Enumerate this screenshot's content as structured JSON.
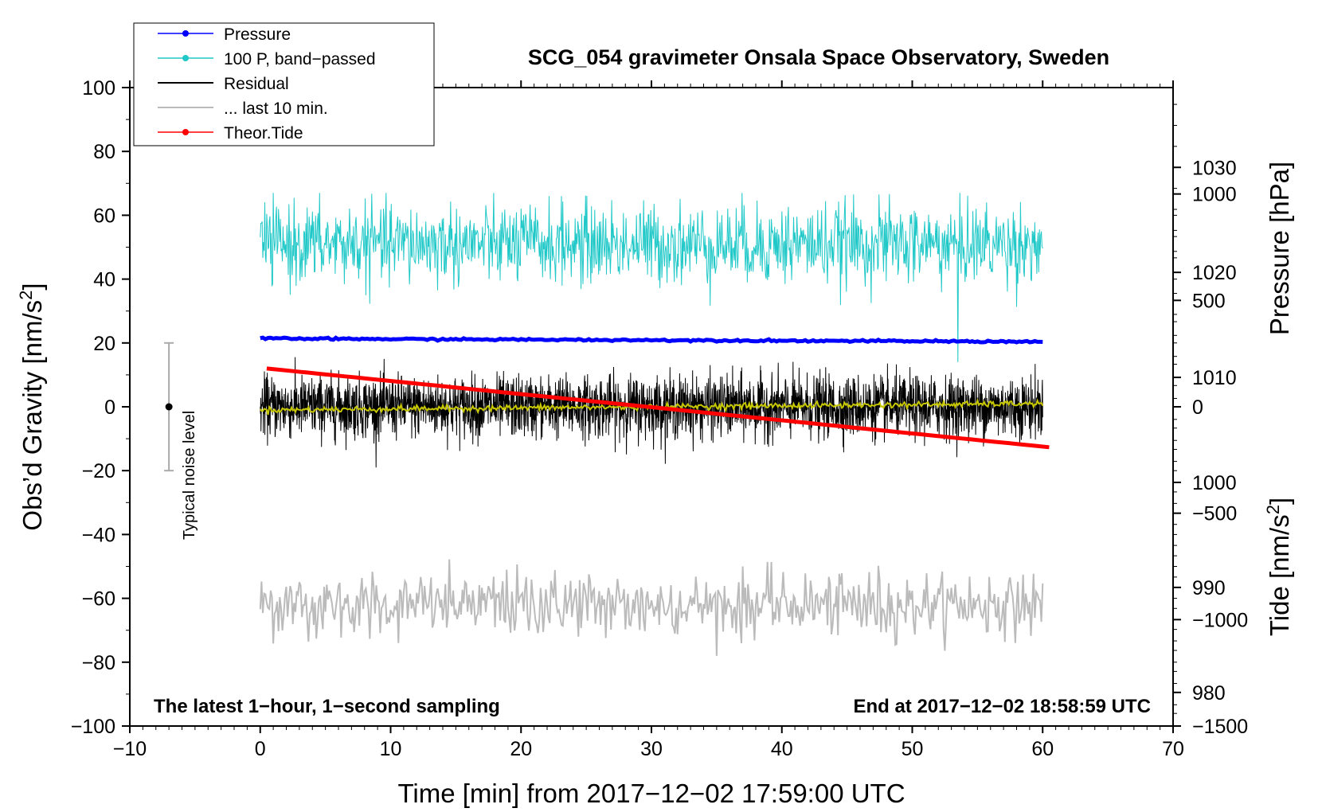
{
  "chart_data": {
    "type": "line",
    "title": "SCG_054 gravimeter Onsala Space Observatory, Sweden",
    "xlabel": "Time [min] from 2017−12−02 17:59:00 UTC",
    "ylabel_left": "Obs’d Gravity [nm/s",
    "ylabel_left_unit_sup": "2",
    "ylabel_left_close": "]",
    "ylabel_right_pressure": "Pressure [hPa]",
    "ylabel_right_tide": "Tide [nm/s",
    "ylabel_right_tide_sup": "2",
    "ylabel_right_tide_close": "]",
    "xlim": [
      -10,
      70
    ],
    "ylim_left": [
      -100,
      100
    ],
    "pressure_lim": [
      976.8,
      1037.6
    ],
    "tide_lim": [
      -1500,
      1500
    ],
    "x_ticks": [
      "−10",
      "0",
      "10",
      "20",
      "30",
      "40",
      "50",
      "60",
      "70"
    ],
    "x_tick_values": [
      -10,
      0,
      10,
      20,
      30,
      40,
      50,
      60,
      70
    ],
    "y_left_ticks": [
      "100",
      "80",
      "60",
      "40",
      "20",
      "0",
      "−20",
      "−40",
      "−60",
      "−80",
      "−100"
    ],
    "y_left_tick_values": [
      100,
      80,
      60,
      40,
      20,
      0,
      -20,
      -40,
      -60,
      -80,
      -100
    ],
    "pressure_ticks": [
      "1030",
      "1020",
      "1010",
      "1000",
      "990",
      "980"
    ],
    "pressure_tick_values": [
      1030,
      1020,
      1010,
      1000,
      990,
      980
    ],
    "tide_ticks": [
      "1000",
      "500",
      "0",
      "−500",
      "−1000",
      "−1500"
    ],
    "tide_tick_values": [
      1000,
      500,
      0,
      -500,
      -1000,
      -1500
    ],
    "legend": [
      {
        "label": "Pressure",
        "color": "#0000ff",
        "marker": true
      },
      {
        "label": "100 P, band−passed",
        "color": "#20c8c8",
        "marker": true
      },
      {
        "label": "Residual",
        "color": "#000000",
        "marker": false
      },
      {
        "label": "... last 10 min.",
        "color": "#bbbbbb",
        "marker": false
      },
      {
        "label": "Theor.Tide",
        "color": "#ff0000",
        "marker": true
      }
    ],
    "annotation_left": "The latest 1−hour, 1−second sampling",
    "annotation_right": "End at 2017−12−02 18:58:59 UTC",
    "noise_label": "Typical noise level",
    "noise_bar": {
      "x": -7,
      "center": 0,
      "half_range": 20
    },
    "series": [
      {
        "name": "Pressure",
        "color": "#0000ff",
        "axis": "pressure",
        "x_range": [
          0,
          60
        ],
        "start": 1013.7,
        "end": 1013.4,
        "noise": 0.15
      },
      {
        "name": "100 P, band−passed",
        "color": "#20c8c8",
        "axis": "left",
        "x_range": [
          0,
          60
        ],
        "mean": 51,
        "amplitude": 7,
        "min": 14,
        "max": 67
      },
      {
        "name": "Residual",
        "color": "#000000",
        "axis": "left",
        "x_range": [
          0,
          60
        ],
        "mean": 0,
        "amplitude": 5,
        "min": -19,
        "max": 18
      },
      {
        "name": "Residual smoothed",
        "color": "#c8c800",
        "axis": "left",
        "x_range": [
          0,
          60
        ],
        "start": -1,
        "end": 1
      },
      {
        "name": "... last 10 min.",
        "color": "#bbbbbb",
        "axis": "left",
        "x_range": [
          0,
          60
        ],
        "mean": -62,
        "amplitude": 5,
        "min": -78,
        "max": -45
      },
      {
        "name": "Theor.Tide",
        "color": "#ff0000",
        "axis": "tide",
        "x_range": [
          0.5,
          60.5
        ],
        "start": 180,
        "end": -190
      }
    ]
  },
  "colors": {
    "pressure": "#0000ff",
    "bandpassed": "#20c8c8",
    "residual": "#000000",
    "smoothed": "#c8c800",
    "last10": "#bbbbbb",
    "tide": "#ff0000",
    "noise_bar": "#aaaaaa"
  }
}
